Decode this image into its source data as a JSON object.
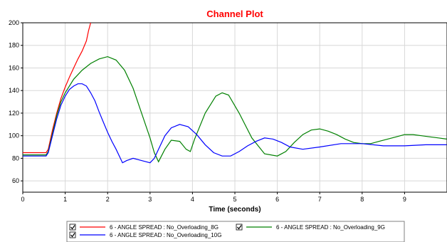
{
  "chart_data": {
    "type": "line",
    "title": "Channel Plot",
    "xlabel": "Time (seconds)",
    "ylabel": "",
    "xlim": [
      0,
      10
    ],
    "ylim": [
      50,
      200
    ],
    "xticks": [
      0,
      1,
      2,
      3,
      4,
      5,
      6,
      7,
      8,
      9
    ],
    "yticks": [
      60,
      80,
      100,
      120,
      140,
      160,
      180,
      200
    ],
    "grid": true,
    "legend_position": "bottom",
    "series": [
      {
        "name": "6 - ANGLE SPREAD : No_Overloading_8G",
        "color": "#ff0000",
        "checked": true,
        "x": [
          0,
          0.55,
          0.6,
          0.7,
          0.8,
          0.9,
          1.0,
          1.1,
          1.2,
          1.3,
          1.4,
          1.5,
          1.55,
          1.6
        ],
        "y": [
          85,
          85,
          88,
          105,
          120,
          133,
          143,
          152,
          160,
          168,
          175,
          184,
          193,
          200
        ]
      },
      {
        "name": "6 - ANGLE SPREAD : No_Overloading_9G",
        "color": "#008000",
        "checked": true,
        "x": [
          0,
          0.55,
          0.6,
          0.7,
          0.8,
          0.9,
          1.0,
          1.2,
          1.4,
          1.6,
          1.8,
          2.0,
          2.2,
          2.4,
          2.6,
          2.8,
          3.0,
          3.1,
          3.2,
          3.35,
          3.5,
          3.7,
          3.85,
          3.95,
          4.05,
          4.3,
          4.55,
          4.7,
          4.85,
          5.1,
          5.4,
          5.7,
          6.0,
          6.2,
          6.4,
          6.6,
          6.8,
          7.0,
          7.2,
          7.4,
          7.6,
          7.8,
          8.0,
          8.2,
          8.4,
          8.6,
          8.8,
          9.0,
          9.2,
          9.4,
          9.6,
          9.8,
          9.99
        ],
        "y": [
          83,
          83,
          86,
          102,
          118,
          130,
          138,
          150,
          158,
          164,
          168,
          170,
          167,
          158,
          142,
          120,
          98,
          85,
          77,
          88,
          96,
          95,
          88,
          86,
          97,
          120,
          135,
          138,
          136,
          120,
          98,
          84,
          82,
          86,
          94,
          101,
          105,
          106,
          104,
          101,
          97,
          94,
          93,
          93,
          95,
          97,
          99,
          101,
          101,
          100,
          99,
          98,
          97
        ]
      },
      {
        "name": "6 - ANGLE SPREAD : No_Overloading_10G",
        "color": "#0000ff",
        "checked": true,
        "x": [
          0,
          0.55,
          0.6,
          0.7,
          0.8,
          0.9,
          1.0,
          1.1,
          1.2,
          1.3,
          1.4,
          1.5,
          1.6,
          1.7,
          1.8,
          1.9,
          2.0,
          2.1,
          2.2,
          2.3,
          2.35,
          2.45,
          2.6,
          2.8,
          3.0,
          3.1,
          3.2,
          3.35,
          3.5,
          3.7,
          3.9,
          4.1,
          4.3,
          4.5,
          4.7,
          4.9,
          5.1,
          5.3,
          5.5,
          5.7,
          5.9,
          6.1,
          6.3,
          6.6,
          7.0,
          7.5,
          8.0,
          8.5,
          9.0,
          9.5,
          9.99
        ],
        "y": [
          82,
          82,
          85,
          100,
          115,
          127,
          135,
          141,
          144,
          146,
          146,
          144,
          138,
          131,
          121,
          112,
          103,
          95,
          88,
          80,
          76,
          78,
          80,
          78,
          76,
          80,
          88,
          100,
          107,
          110,
          108,
          101,
          92,
          85,
          82,
          82,
          86,
          91,
          95,
          98,
          97,
          94,
          90,
          88,
          90,
          93,
          93,
          91,
          91,
          92,
          92
        ]
      }
    ]
  }
}
